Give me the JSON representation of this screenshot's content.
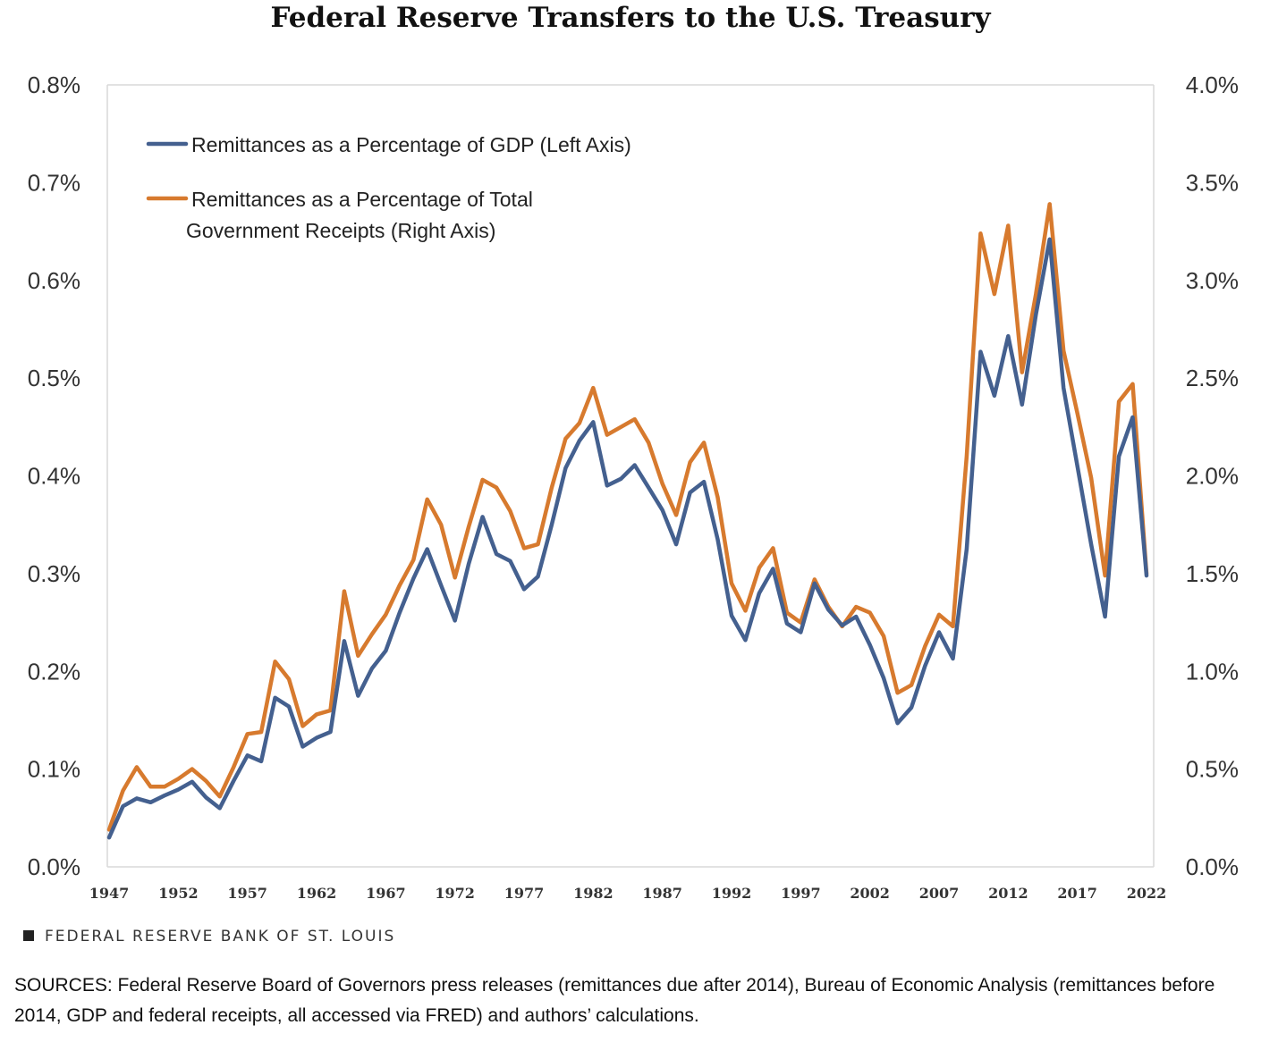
{
  "title": "Federal Reserve Transfers to the U.S. Treasury",
  "branding": "FEDERAL RESERVE BANK OF ST. LOUIS",
  "sources": "SOURCES: Federal Reserve Board of Governors press releases (remittances due after 2014), Bureau of Economic Analysis (remittances before 2014, GDP and federal receipts, all accessed via FRED) and authors’ calculations.",
  "colors": {
    "gdp": "#44608f",
    "receipts": "#d77a2e",
    "grid": "#d9d9d9"
  },
  "chart_data": {
    "type": "line",
    "title": "Federal Reserve Transfers to the U.S. Treasury",
    "x_ticks": [
      1947,
      1952,
      1957,
      1962,
      1967,
      1972,
      1977,
      1982,
      1987,
      1992,
      1997,
      2002,
      2007,
      2012,
      2017,
      2022
    ],
    "y_left_ticks": [
      "0.0%",
      "0.1%",
      "0.2%",
      "0.3%",
      "0.4%",
      "0.5%",
      "0.6%",
      "0.7%",
      "0.8%"
    ],
    "y_right_ticks": [
      "0.0%",
      "0.5%",
      "1.0%",
      "1.5%",
      "2.0%",
      "2.5%",
      "3.0%",
      "3.5%",
      "4.0%"
    ],
    "y_left_lim": [
      0,
      0.8
    ],
    "y_right_lim": [
      0,
      4.0
    ],
    "grid": "vertical lines at left and right edges, horizontal grid off",
    "legend_position": "top-left",
    "x": [
      1947,
      1948,
      1949,
      1950,
      1951,
      1952,
      1953,
      1954,
      1955,
      1956,
      1957,
      1958,
      1959,
      1960,
      1961,
      1962,
      1963,
      1964,
      1965,
      1966,
      1967,
      1968,
      1969,
      1970,
      1971,
      1972,
      1973,
      1974,
      1975,
      1976,
      1977,
      1978,
      1979,
      1980,
      1981,
      1982,
      1983,
      1984,
      1985,
      1986,
      1987,
      1988,
      1989,
      1990,
      1991,
      1992,
      1993,
      1994,
      1995,
      1996,
      1997,
      1998,
      1999,
      2000,
      2001,
      2002,
      2003,
      2004,
      2005,
      2006,
      2007,
      2008,
      2009,
      2010,
      2011,
      2012,
      2013,
      2014,
      2015,
      2016,
      2017,
      2018,
      2019,
      2020,
      2021,
      2022
    ],
    "series": [
      {
        "name": "Remittances as a Percentage of GDP (Left Axis)",
        "axis": "left",
        "values": [
          0.03,
          0.062,
          0.07,
          0.066,
          0.073,
          0.079,
          0.087,
          0.071,
          0.06,
          0.088,
          0.114,
          0.108,
          0.173,
          0.164,
          0.123,
          0.132,
          0.138,
          0.231,
          0.175,
          0.203,
          0.221,
          0.26,
          0.295,
          0.325,
          0.288,
          0.252,
          0.31,
          0.358,
          0.32,
          0.313,
          0.284,
          0.297,
          0.35,
          0.408,
          0.436,
          0.455,
          0.39,
          0.397,
          0.411,
          0.388,
          0.365,
          0.33,
          0.383,
          0.394,
          0.335,
          0.257,
          0.232,
          0.28,
          0.305,
          0.249,
          0.24,
          0.29,
          0.263,
          0.247,
          0.256,
          0.227,
          0.193,
          0.147,
          0.163,
          0.206,
          0.24,
          0.213,
          0.325,
          0.527,
          0.482,
          0.543,
          0.473,
          0.565,
          0.642,
          0.49,
          0.41,
          0.33,
          0.256,
          0.42,
          0.46,
          0.298
        ]
      },
      {
        "name": "Remittances as a Percentage of Total Government Receipts (Right Axis)",
        "axis": "right",
        "values": [
          0.19,
          0.39,
          0.51,
          0.41,
          0.41,
          0.45,
          0.5,
          0.44,
          0.36,
          0.51,
          0.68,
          0.69,
          1.05,
          0.96,
          0.72,
          0.78,
          0.8,
          1.41,
          1.08,
          1.19,
          1.29,
          1.44,
          1.57,
          1.88,
          1.75,
          1.48,
          1.74,
          1.98,
          1.94,
          1.82,
          1.63,
          1.65,
          1.94,
          2.19,
          2.27,
          2.45,
          2.21,
          2.25,
          2.29,
          2.17,
          1.96,
          1.8,
          2.07,
          2.17,
          1.89,
          1.45,
          1.31,
          1.53,
          1.63,
          1.3,
          1.25,
          1.47,
          1.33,
          1.23,
          1.33,
          1.3,
          1.18,
          0.89,
          0.93,
          1.13,
          1.29,
          1.23,
          2.1,
          3.24,
          2.93,
          3.28,
          2.53,
          2.93,
          3.39,
          2.64,
          2.32,
          1.99,
          1.49,
          2.38,
          2.47,
          1.5
        ]
      }
    ]
  }
}
